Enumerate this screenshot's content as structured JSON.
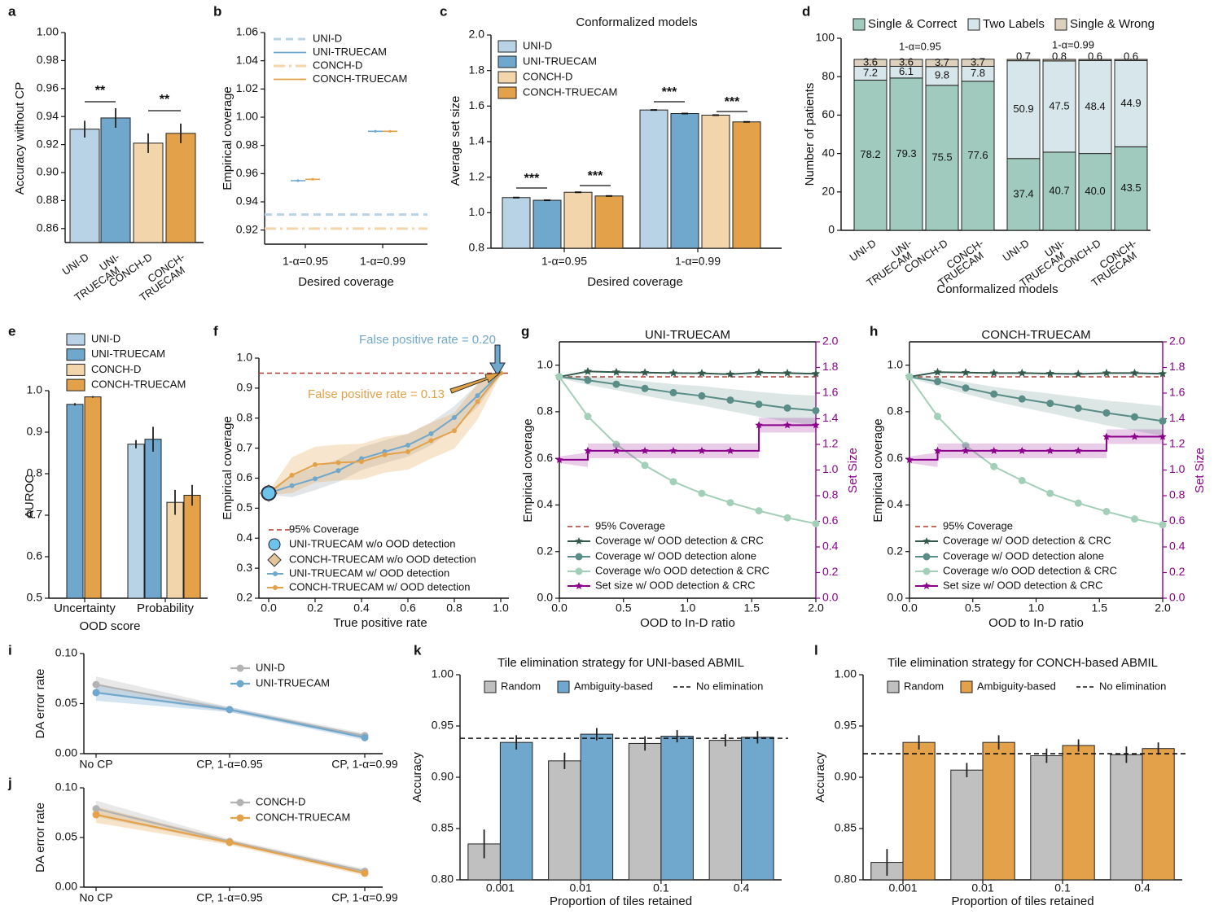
{
  "colors": {
    "uni_d": "#b9d3e6",
    "uni_true": "#6fa7cd",
    "conch_d": "#f3d5ab",
    "conch_true": "#e3a24a",
    "grey": "#c0c0c0",
    "red": "#b03a2e",
    "dark": "#33594c",
    "mid": "#5a8d87",
    "light": "#a3cfb9",
    "purple": "#8b008b",
    "stack_correct": "#9fcabd",
    "stack_two": "#d7e6ea",
    "stack_wrong": "#ddd0bc"
  },
  "panel_labels": [
    "a",
    "b",
    "c",
    "d",
    "e",
    "f",
    "g",
    "h",
    "i",
    "j",
    "k",
    "l"
  ],
  "chart_data": [
    {
      "id": "a",
      "type": "bar",
      "title": "",
      "ylabel": "Accuracy without CP",
      "ylim": [
        0.85,
        1.0
      ],
      "yticks": [
        "0.86",
        "0.88",
        "0.90",
        "0.92",
        "0.94",
        "0.96",
        "0.98",
        "1.00"
      ],
      "categories": [
        "UNI-D",
        "UNI-TRUECAM",
        "CONCH-D",
        "CONCH-TRUECAM"
      ],
      "tick_labels": [
        [
          "UNI-D"
        ],
        [
          "UNI-",
          "TRUECAM"
        ],
        [
          "CONCH-D"
        ],
        [
          "CONCH-",
          "TRUECAM"
        ]
      ],
      "values": [
        0.931,
        0.939,
        0.921,
        0.928
      ],
      "errors": [
        0.006,
        0.007,
        0.007,
        0.007
      ],
      "significance": [
        "**",
        "**"
      ]
    },
    {
      "id": "b",
      "type": "scatter",
      "title": "",
      "xlabel": "Desired coverage",
      "ylabel": "Empirical coverage",
      "ylim": [
        0.91,
        1.06
      ],
      "yticks": [
        "0.92",
        "0.94",
        "0.96",
        "0.98",
        "1.00",
        "1.02",
        "1.04",
        "1.06"
      ],
      "categories": [
        "1-α=0.95",
        "1-α=0.99"
      ],
      "legend": [
        "UNI-D",
        "UNI-TRUECAM",
        "CONCH-D",
        "CONCH-TRUECAM"
      ],
      "reference_lines": [
        0.931,
        0.921
      ],
      "series": [
        {
          "name": "UNI-TRUECAM",
          "values": [
            0.955,
            0.99
          ]
        },
        {
          "name": "CONCH-TRUECAM",
          "values": [
            0.956,
            0.99
          ]
        }
      ]
    },
    {
      "id": "c",
      "type": "bar",
      "title": "Conformalized models",
      "xlabel": "Desired coverage",
      "ylabel": "Average set size",
      "ylim": [
        0.8,
        2.0
      ],
      "yticks": [
        "0.8",
        "1.0",
        "1.2",
        "1.4",
        "1.6",
        "1.8",
        "2.0"
      ],
      "categories": [
        "1-α=0.95",
        "1-α=0.99"
      ],
      "legend": [
        "UNI-D",
        "UNI-TRUECAM",
        "CONCH-D",
        "CONCH-TRUECAM"
      ],
      "series": [
        {
          "name": "UNI-D",
          "values": [
            1.085,
            1.578
          ]
        },
        {
          "name": "UNI-TRUECAM",
          "values": [
            1.07,
            1.558
          ]
        },
        {
          "name": "CONCH-D",
          "values": [
            1.115,
            1.549
          ]
        },
        {
          "name": "CONCH-TRUECAM",
          "values": [
            1.094,
            1.511
          ]
        }
      ],
      "significance": [
        "***",
        "***",
        "***",
        "***"
      ]
    },
    {
      "id": "d",
      "type": "bar",
      "title": "",
      "xlabel": "Conformalized models",
      "ylabel": "Number of patients",
      "ylim": [
        0,
        100
      ],
      "yticks": [
        "0",
        "20",
        "40",
        "60",
        "80",
        "100"
      ],
      "legend": [
        "Single & Correct",
        "Two Labels",
        "Single & Wrong"
      ],
      "groups": [
        "1-α=0.95",
        "1-α=0.99"
      ],
      "tick_labels": [
        [
          "UNI-D"
        ],
        [
          "UNI-",
          "TRUECAM"
        ],
        [
          "CONCH-D"
        ],
        [
          "CONCH-",
          "TRUECAM"
        ],
        [
          "UNI-D"
        ],
        [
          "UNI-",
          "TRUECAM"
        ],
        [
          "CONCH-D"
        ],
        [
          "CONCH-",
          "TRUECAM"
        ]
      ],
      "single_correct": [
        78.2,
        79.3,
        75.5,
        77.6,
        37.4,
        40.7,
        40.0,
        43.5
      ],
      "two_labels": [
        7.2,
        6.1,
        9.8,
        7.8,
        50.9,
        47.5,
        48.4,
        44.9
      ],
      "single_wrong": [
        3.6,
        3.6,
        3.7,
        3.7,
        0.7,
        0.8,
        0.6,
        0.6
      ],
      "labels_correct": [
        "78.2",
        "79.3",
        "75.5",
        "77.6",
        "37.4",
        "40.7",
        "40.0",
        "43.5"
      ],
      "labels_two": [
        "7.2",
        "6.1",
        "9.8",
        "7.8",
        "50.9",
        "47.5",
        "48.4",
        "44.9"
      ],
      "labels_wrong": [
        "3.6",
        "3.6",
        "3.7",
        "3.7",
        "0.7",
        "0.8",
        "0.6",
        "0.6"
      ]
    },
    {
      "id": "e",
      "type": "bar",
      "title": "",
      "xlabel": "OOD score",
      "ylabel": "AUROC",
      "ylim": [
        0.5,
        1.0
      ],
      "yticks": [
        "0.5",
        "0.6",
        "0.7",
        "0.8",
        "0.9",
        "1.0"
      ],
      "categories": [
        "Uncertainty",
        "Probability"
      ],
      "legend": [
        "UNI-D",
        "UNI-TRUECAM",
        "CONCH-D",
        "CONCH-TRUECAM"
      ],
      "uncertainty": {
        "UNI-TRUECAM": 0.967,
        "CONCH-TRUECAM": 0.985
      },
      "probability": {
        "UNI-D": 0.871,
        "UNI-TRUECAM": 0.883,
        "CONCH-D": 0.731,
        "CONCH-TRUECAM": 0.748
      },
      "errors": [
        0.003,
        0.002,
        0.01,
        0.03,
        0.03,
        0.025
      ]
    },
    {
      "id": "f",
      "type": "line",
      "title": "",
      "xlabel": "True positive rate",
      "ylabel": "Empirical coverage",
      "xlim": [
        0,
        1
      ],
      "ylim": [
        0.2,
        1.0
      ],
      "xticks": [
        "0.0",
        "0.2",
        "0.4",
        "0.6",
        "0.8",
        "1.0"
      ],
      "yticks": [
        "0.2",
        "0.3",
        "0.4",
        "0.5",
        "0.6",
        "0.7",
        "0.8",
        "0.9",
        "1.0"
      ],
      "coverage_line": 0.95,
      "annotations": [
        "False positive rate = 0.20",
        "False positive rate = 0.13"
      ],
      "legend": [
        "95% Coverage",
        "UNI-TRUECAM w/o OOD detection",
        "CONCH-TRUECAM w/o OOD detection",
        "UNI-TRUECAM w/ OOD detection",
        "CONCH-TRUECAM w/ OOD detection"
      ],
      "no_ood_point": {
        "x": 0.0,
        "y": 0.55
      },
      "series": [
        {
          "name": "UNI-TRUECAM w/ OOD detection",
          "x": [
            0,
            0.1,
            0.2,
            0.3,
            0.4,
            0.5,
            0.6,
            0.7,
            0.8,
            0.9,
            1.0
          ],
          "y": [
            0.55,
            0.575,
            0.598,
            0.625,
            0.665,
            0.688,
            0.71,
            0.748,
            0.802,
            0.875,
            0.95
          ]
        },
        {
          "name": "CONCH-TRUECAM w/ OOD detection",
          "x": [
            0,
            0.1,
            0.2,
            0.3,
            0.4,
            0.5,
            0.6,
            0.7,
            0.8,
            0.9,
            1.0
          ],
          "y": [
            0.55,
            0.61,
            0.645,
            0.652,
            0.655,
            0.678,
            0.688,
            0.725,
            0.758,
            0.855,
            0.95
          ]
        }
      ]
    },
    {
      "id": "g",
      "type": "line",
      "title": "UNI-TRUECAM",
      "xlabel": "OOD to In-D ratio",
      "ylabel": "Empirical coverage",
      "y2label": "Set Size",
      "xlim": [
        0,
        2
      ],
      "ylim": [
        0,
        1.1
      ],
      "y2lim": [
        0,
        2.0
      ],
      "xticks": [
        "0.0",
        "0.5",
        "1.0",
        "1.5",
        "2.0"
      ],
      "yticks": [
        "0.0",
        "0.2",
        "0.4",
        "0.6",
        "0.8",
        "1.0"
      ],
      "y2ticks": [
        "0.0",
        "0.2",
        "0.4",
        "0.6",
        "0.8",
        "1.0",
        "1.2",
        "1.4",
        "1.6",
        "1.8",
        "2.0"
      ],
      "coverage_line": 0.95,
      "legend": [
        "95% Coverage",
        "Coverage w/ OOD detection & CRC",
        "Coverage w/ OOD detection alone",
        "Coverage w/o OOD detection & CRC",
        "Set size w/ OOD detection & CRC"
      ],
      "x": [
        0,
        0.222,
        0.444,
        0.667,
        0.889,
        1.111,
        1.333,
        1.556,
        1.778,
        2.0
      ],
      "series": [
        {
          "name": "Coverage w/ OOD detection & CRC",
          "values": [
            0.95,
            0.973,
            0.97,
            0.968,
            0.966,
            0.965,
            0.961,
            0.968,
            0.966,
            0.963
          ]
        },
        {
          "name": "Coverage w/ OOD detection alone",
          "values": [
            0.95,
            0.935,
            0.918,
            0.9,
            0.882,
            0.868,
            0.85,
            0.832,
            0.816,
            0.805
          ]
        },
        {
          "name": "Coverage w/o OOD detection & CRC",
          "values": [
            0.95,
            0.78,
            0.66,
            0.57,
            0.5,
            0.45,
            0.41,
            0.375,
            0.345,
            0.32
          ]
        },
        {
          "name": "Set size w/ OOD detection & CRC",
          "axis": "right",
          "values": [
            1.08,
            1.15,
            1.15,
            1.15,
            1.15,
            1.15,
            1.15,
            1.35,
            1.35,
            1.35
          ]
        }
      ]
    },
    {
      "id": "h",
      "type": "line",
      "title": "CONCH-TRUECAM",
      "xlabel": "OOD to In-D ratio",
      "ylabel": "Empirical coverage",
      "y2label": "Set Size",
      "xlim": [
        0,
        2
      ],
      "ylim": [
        0,
        1.1
      ],
      "y2lim": [
        0,
        2.0
      ],
      "xticks": [
        "0.0",
        "0.5",
        "1.0",
        "1.5",
        "2.0"
      ],
      "yticks": [
        "0.0",
        "0.2",
        "0.4",
        "0.6",
        "0.8",
        "1.0"
      ],
      "y2ticks": [
        "0.0",
        "0.2",
        "0.4",
        "0.6",
        "0.8",
        "1.0",
        "1.2",
        "1.4",
        "1.6",
        "1.8",
        "2.0"
      ],
      "coverage_line": 0.95,
      "legend": [
        "95% Coverage",
        "Coverage w/ OOD detection & CRC",
        "Coverage w/ OOD detection alone",
        "Coverage w/o OOD detection & CRC",
        "Set size w/ OOD detection & CRC"
      ],
      "x": [
        0,
        0.222,
        0.444,
        0.667,
        0.889,
        1.111,
        1.333,
        1.556,
        1.778,
        2.0
      ],
      "series": [
        {
          "name": "Coverage w/ OOD detection & CRC",
          "values": [
            0.95,
            0.97,
            0.968,
            0.966,
            0.966,
            0.964,
            0.962,
            0.966,
            0.966,
            0.963
          ]
        },
        {
          "name": "Coverage w/ OOD detection alone",
          "values": [
            0.95,
            0.93,
            0.902,
            0.876,
            0.855,
            0.836,
            0.815,
            0.795,
            0.778,
            0.76
          ]
        },
        {
          "name": "Coverage w/o OOD detection & CRC",
          "values": [
            0.95,
            0.78,
            0.655,
            0.565,
            0.505,
            0.45,
            0.408,
            0.372,
            0.34,
            0.315
          ]
        },
        {
          "name": "Set size w/ OOD detection & CRC",
          "axis": "right",
          "values": [
            1.08,
            1.15,
            1.15,
            1.15,
            1.15,
            1.15,
            1.15,
            1.26,
            1.26,
            1.26
          ]
        }
      ]
    },
    {
      "id": "i",
      "type": "line",
      "title": "",
      "ylabel": "DA error rate",
      "ylim": [
        0,
        0.1
      ],
      "yticks": [
        "0.00",
        "0.05",
        "0.10"
      ],
      "categories": [
        "No CP",
        "CP, 1-α=0.95",
        "CP, 1-α=0.99"
      ],
      "series": [
        {
          "name": "UNI-D",
          "values": [
            0.069,
            0.044,
            0.018
          ]
        },
        {
          "name": "UNI-TRUECAM",
          "values": [
            0.061,
            0.044,
            0.016
          ]
        }
      ]
    },
    {
      "id": "j",
      "type": "line",
      "title": "",
      "ylabel": "DA error rate",
      "ylim": [
        0,
        0.1
      ],
      "yticks": [
        "0.00",
        "0.05",
        "0.10"
      ],
      "categories": [
        "No CP",
        "CP, 1-α=0.95",
        "CP, 1-α=0.99"
      ],
      "series": [
        {
          "name": "CONCH-D",
          "values": [
            0.079,
            0.046,
            0.016
          ]
        },
        {
          "name": "CONCH-TRUECAM",
          "values": [
            0.073,
            0.045,
            0.014
          ]
        }
      ]
    },
    {
      "id": "k",
      "type": "bar",
      "title": "Tile elimination strategy for UNI-based ABMIL",
      "xlabel": "Proportion of tiles retained",
      "ylabel": "Accuracy",
      "ylim": [
        0.8,
        1.0
      ],
      "yticks": [
        "0.80",
        "0.85",
        "0.90",
        "0.95",
        "1.00"
      ],
      "categories": [
        "0.001",
        "0.01",
        "0.1",
        "0.4"
      ],
      "legend": [
        "Random",
        "Ambiguity-based",
        "No elimination"
      ],
      "no_elimination": 0.938,
      "series": [
        {
          "name": "Random",
          "values": [
            0.835,
            0.916,
            0.933,
            0.936
          ],
          "errors": [
            0.014,
            0.008,
            0.007,
            0.006
          ]
        },
        {
          "name": "Ambiguity-based",
          "values": [
            0.934,
            0.942,
            0.94,
            0.939
          ],
          "errors": [
            0.007,
            0.006,
            0.006,
            0.006
          ]
        }
      ]
    },
    {
      "id": "l",
      "type": "bar",
      "title": "Tile elimination strategy for CONCH-based ABMIL",
      "xlabel": "Proportion of tiles retained",
      "ylabel": "Accuracy",
      "ylim": [
        0.8,
        1.0
      ],
      "yticks": [
        "0.80",
        "0.85",
        "0.90",
        "0.95",
        "1.00"
      ],
      "categories": [
        "0.001",
        "0.01",
        "0.1",
        "0.4"
      ],
      "legend": [
        "Random",
        "Ambiguity-based",
        "No elimination"
      ],
      "no_elimination": 0.923,
      "series": [
        {
          "name": "Random",
          "values": [
            0.817,
            0.907,
            0.921,
            0.922
          ],
          "errors": [
            0.013,
            0.007,
            0.007,
            0.008
          ]
        },
        {
          "name": "Ambiguity-based",
          "values": [
            0.934,
            0.934,
            0.931,
            0.928
          ],
          "errors": [
            0.007,
            0.007,
            0.006,
            0.006
          ]
        }
      ]
    }
  ]
}
